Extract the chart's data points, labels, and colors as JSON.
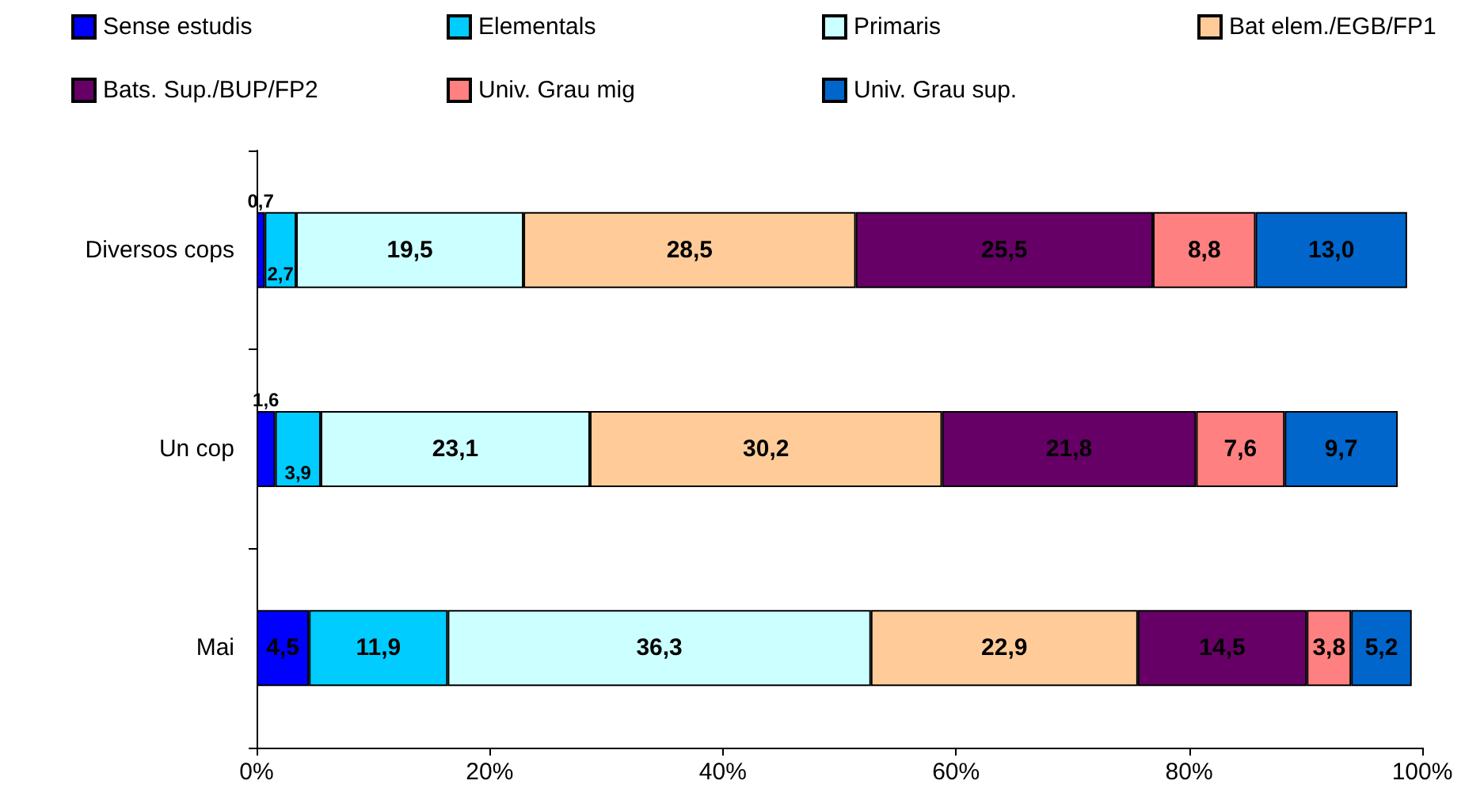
{
  "chart_data": {
    "type": "bar",
    "orientation": "horizontal",
    "stacked": true,
    "legend": "top",
    "grid": false,
    "categories": [
      "Diversos cops",
      "Un cop",
      "Mai"
    ],
    "xlim": [
      0,
      100
    ],
    "xticks": [
      {
        "value": 0,
        "label": "0%"
      },
      {
        "value": 20,
        "label": "20%"
      },
      {
        "value": 40,
        "label": "40%"
      },
      {
        "value": 60,
        "label": "60%"
      },
      {
        "value": 80,
        "label": "80%"
      },
      {
        "value": 100,
        "label": "100%"
      }
    ],
    "series": [
      {
        "name": "Sense estudis",
        "color": "#0000ff",
        "values": [
          0.7,
          1.6,
          4.5
        ],
        "value_labels": [
          "0,7",
          "1,6",
          "4,5"
        ]
      },
      {
        "name": "Elementals",
        "color": "#00ccff",
        "values": [
          2.7,
          3.9,
          11.9
        ],
        "value_labels": [
          "2,7",
          "3,9",
          "11,9"
        ]
      },
      {
        "name": "Primaris",
        "color": "#ccffff",
        "values": [
          19.5,
          23.1,
          36.3
        ],
        "value_labels": [
          "19,5",
          "23,1",
          "36,3"
        ]
      },
      {
        "name": "Bat elem./EGB/FP1",
        "color": "#ffcc99",
        "values": [
          28.5,
          30.2,
          22.9
        ],
        "value_labels": [
          "28,5",
          "30,2",
          "22,9"
        ]
      },
      {
        "name": "Bats. Sup./BUP/FP2",
        "color": "#660066",
        "values": [
          25.5,
          21.8,
          14.5
        ],
        "value_labels": [
          "25,5",
          "21,8",
          "14,5"
        ]
      },
      {
        "name": "Univ. Grau mig",
        "color": "#ff8080",
        "values": [
          8.8,
          7.6,
          3.8
        ],
        "value_labels": [
          "8,8",
          "7,6",
          "3,8"
        ]
      },
      {
        "name": "Univ. Grau sup.",
        "color": "#0066cc",
        "values": [
          13.0,
          9.7,
          5.2
        ],
        "value_labels": [
          "13,0",
          "9,7",
          "5,2"
        ]
      }
    ]
  }
}
